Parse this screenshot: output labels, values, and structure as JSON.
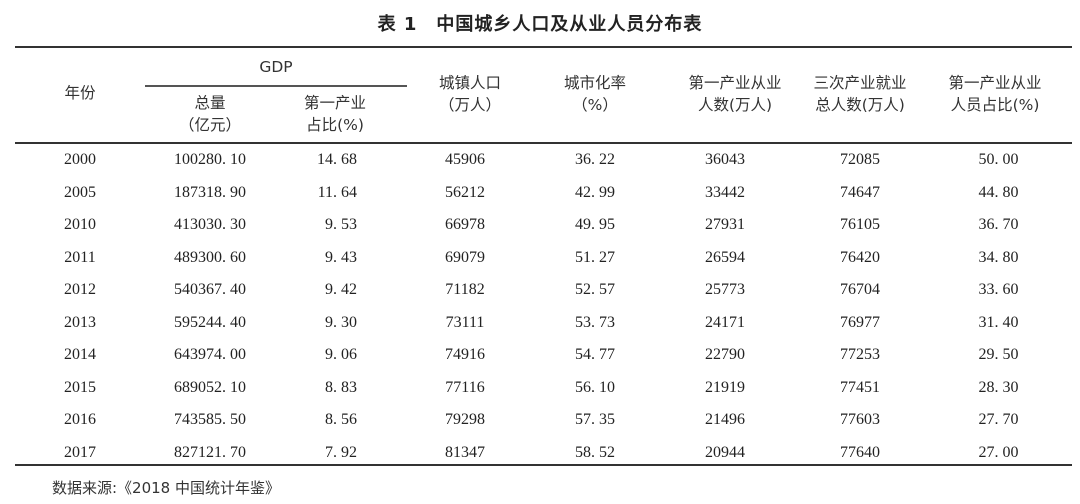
{
  "title": "表 1　中国城乡人口及从业人员分布表",
  "headers": {
    "year": "年份",
    "gdp_group": "GDP",
    "gdp_total": [
      "总量",
      "（亿元）"
    ],
    "gdp_primary_share": [
      "第一产业",
      "占比(%)"
    ],
    "urban_population": [
      "城镇人口",
      "（万人）"
    ],
    "urbanization_rate": [
      "城市化率",
      "（%）"
    ],
    "primary_employment": [
      "第一产业从业",
      "人数(万人)"
    ],
    "total_employment": [
      "三次产业就业",
      "总人数(万人)"
    ],
    "primary_employment_share": [
      "第一产业从业",
      "人员占比(%)"
    ]
  },
  "rows": [
    [
      "2000",
      "100280. 10",
      "14. 68",
      "45906",
      "36. 22",
      "36043",
      "72085",
      "50. 00"
    ],
    [
      "2005",
      "187318. 90",
      "11. 64",
      "56212",
      "42. 99",
      "33442",
      "74647",
      "44. 80"
    ],
    [
      "2010",
      "413030. 30",
      "9. 53",
      "66978",
      "49. 95",
      "27931",
      "76105",
      "36. 70"
    ],
    [
      "2011",
      "489300. 60",
      "9. 43",
      "69079",
      "51. 27",
      "26594",
      "76420",
      "34. 80"
    ],
    [
      "2012",
      "540367. 40",
      "9. 42",
      "71182",
      "52. 57",
      "25773",
      "76704",
      "33. 60"
    ],
    [
      "2013",
      "595244. 40",
      "9. 30",
      "73111",
      "53. 73",
      "24171",
      "76977",
      "31. 40"
    ],
    [
      "2014",
      "643974. 00",
      "9. 06",
      "74916",
      "54. 77",
      "22790",
      "77253",
      "29. 50"
    ],
    [
      "2015",
      "689052. 10",
      "8. 83",
      "77116",
      "56. 10",
      "21919",
      "77451",
      "28. 30"
    ],
    [
      "2016",
      "743585. 50",
      "8. 56",
      "79298",
      "57. 35",
      "21496",
      "77603",
      "27. 70"
    ],
    [
      "2017",
      "827121. 70",
      "7. 92",
      "81347",
      "58. 52",
      "20944",
      "77640",
      "27. 00"
    ]
  ],
  "source": "数据来源:《2018 中国统计年鉴》"
}
